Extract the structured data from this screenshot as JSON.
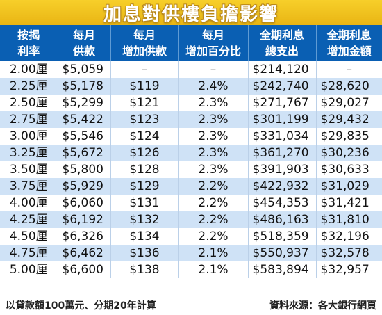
{
  "title": "加息對供樓負擔影響",
  "headers": [
    [
      "按揭",
      "利率"
    ],
    [
      "每月",
      "供款"
    ],
    [
      "每月",
      "增加供款"
    ],
    [
      "每月",
      "增加百分比"
    ],
    [
      "全期利息",
      "總支出"
    ],
    [
      "全期利息",
      "增加金額"
    ]
  ],
  "rows": [
    [
      "2.00厘",
      "$5,059",
      "–",
      "–",
      "$214,120",
      "–"
    ],
    [
      "2.25厘",
      "$5,178",
      "$119",
      "2.4%",
      "$242,740",
      "$28,620"
    ],
    [
      "2.50厘",
      "$5,299",
      "$121",
      "2.3%",
      "$271,767",
      "$29,027"
    ],
    [
      "2.75厘",
      "$5,422",
      "$123",
      "2.3%",
      "$301,199",
      "$29,432"
    ],
    [
      "3.00厘",
      "$5,546",
      "$124",
      "2.3%",
      "$331,034",
      "$29,835"
    ],
    [
      "3.25厘",
      "$5,672",
      "$126",
      "2.3%",
      "$361,270",
      "$30,236"
    ],
    [
      "3.50厘",
      "$5,800",
      "$128",
      "2.3%",
      "$391,903",
      "$30,633"
    ],
    [
      "3.75厘",
      "$5,929",
      "$129",
      "2.2%",
      "$422,932",
      "$31,029"
    ],
    [
      "4.00厘",
      "$6,060",
      "$131",
      "2.2%",
      "$454,353",
      "$31,421"
    ],
    [
      "4.25厘",
      "$6,192",
      "$132",
      "2.2%",
      "$486,163",
      "$31,810"
    ],
    [
      "4.50厘",
      "$6,326",
      "$134",
      "2.2%",
      "$518,359",
      "$32,196"
    ],
    [
      "4.75厘",
      "$6,462",
      "$136",
      "2.1%",
      "$550,937",
      "$32,578"
    ],
    [
      "5.00厘",
      "$6,600",
      "$138",
      "2.1%",
      "$583,894",
      "$32,957"
    ]
  ],
  "footer": {
    "note": "以貸款額100萬元、分期20年計算",
    "source": "資料來源：各大銀行網頁"
  },
  "colors": {
    "title_bar": "#efc01f",
    "header_bg": "#0a5fb3",
    "stripe": "#cfe2f6"
  }
}
